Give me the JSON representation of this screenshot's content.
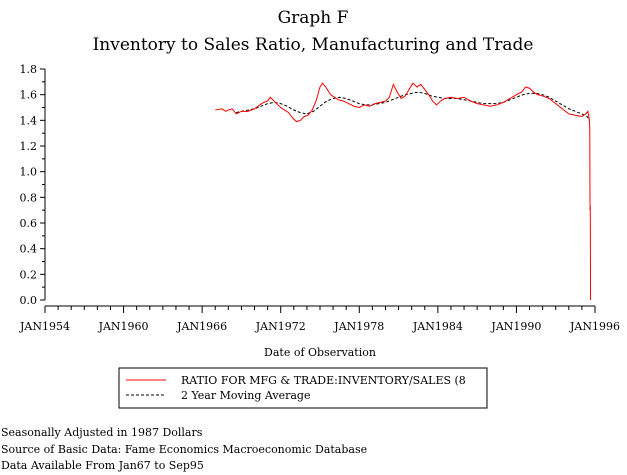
{
  "chart_data": {
    "type": "line",
    "title": "Graph F",
    "subtitle": "Inventory to Sales Ratio, Manufacturing and Trade",
    "xlabel": "Date of Observation",
    "ylabel": "",
    "x_range": [
      1954.0,
      1996.0
    ],
    "ylim": [
      0.0,
      1.8
    ],
    "x_ticks": [
      {
        "label": "JAN1954",
        "value": 1954
      },
      {
        "label": "JAN1960",
        "value": 1960
      },
      {
        "label": "JAN1966",
        "value": 1966
      },
      {
        "label": "JAN1972",
        "value": 1972
      },
      {
        "label": "JAN1978",
        "value": 1978
      },
      {
        "label": "JAN1984",
        "value": 1984
      },
      {
        "label": "JAN1990",
        "value": 1990
      },
      {
        "label": "JAN1996",
        "value": 1996
      }
    ],
    "y_ticks": [
      "0.0",
      "0.2",
      "0.4",
      "0.6",
      "0.8",
      "1.0",
      "1.2",
      "1.4",
      "1.6",
      "1.8"
    ],
    "legend_position": "bottom",
    "series": [
      {
        "name": "RATIO FOR MFG & TRADE:INVENTORY/SALES (8",
        "color": "#ff0000",
        "style": "solid",
        "points": [
          [
            1967.0,
            1.48
          ],
          [
            1967.5,
            1.49
          ],
          [
            1967.8,
            1.47
          ],
          [
            1968.0,
            1.48
          ],
          [
            1968.3,
            1.49
          ],
          [
            1968.6,
            1.45
          ],
          [
            1969.0,
            1.47
          ],
          [
            1969.5,
            1.47
          ],
          [
            1970.0,
            1.49
          ],
          [
            1970.4,
            1.52
          ],
          [
            1970.7,
            1.54
          ],
          [
            1971.0,
            1.55
          ],
          [
            1971.2,
            1.58
          ],
          [
            1971.5,
            1.55
          ],
          [
            1971.8,
            1.52
          ],
          [
            1972.0,
            1.5
          ],
          [
            1972.3,
            1.48
          ],
          [
            1972.6,
            1.46
          ],
          [
            1972.9,
            1.42
          ],
          [
            1973.2,
            1.39
          ],
          [
            1973.5,
            1.4
          ],
          [
            1973.8,
            1.43
          ],
          [
            1974.1,
            1.44
          ],
          [
            1974.4,
            1.48
          ],
          [
            1974.7,
            1.55
          ],
          [
            1975.0,
            1.66
          ],
          [
            1975.2,
            1.69
          ],
          [
            1975.5,
            1.65
          ],
          [
            1975.8,
            1.6
          ],
          [
            1976.1,
            1.58
          ],
          [
            1976.4,
            1.56
          ],
          [
            1976.8,
            1.55
          ],
          [
            1977.2,
            1.53
          ],
          [
            1977.6,
            1.51
          ],
          [
            1978.0,
            1.5
          ],
          [
            1978.4,
            1.52
          ],
          [
            1978.8,
            1.51
          ],
          [
            1979.2,
            1.53
          ],
          [
            1979.6,
            1.54
          ],
          [
            1980.0,
            1.55
          ],
          [
            1980.3,
            1.58
          ],
          [
            1980.6,
            1.68
          ],
          [
            1980.9,
            1.62
          ],
          [
            1981.2,
            1.57
          ],
          [
            1981.5,
            1.59
          ],
          [
            1981.8,
            1.64
          ],
          [
            1982.1,
            1.69
          ],
          [
            1982.4,
            1.66
          ],
          [
            1982.7,
            1.68
          ],
          [
            1983.0,
            1.64
          ],
          [
            1983.3,
            1.6
          ],
          [
            1983.6,
            1.55
          ],
          [
            1983.9,
            1.52
          ],
          [
            1984.2,
            1.55
          ],
          [
            1984.5,
            1.57
          ],
          [
            1985.0,
            1.58
          ],
          [
            1985.5,
            1.57
          ],
          [
            1986.0,
            1.58
          ],
          [
            1986.5,
            1.55
          ],
          [
            1987.0,
            1.53
          ],
          [
            1987.5,
            1.52
          ],
          [
            1988.0,
            1.51
          ],
          [
            1988.5,
            1.52
          ],
          [
            1989.0,
            1.54
          ],
          [
            1989.5,
            1.57
          ],
          [
            1990.0,
            1.6
          ],
          [
            1990.4,
            1.62
          ],
          [
            1990.7,
            1.66
          ],
          [
            1991.0,
            1.65
          ],
          [
            1991.3,
            1.62
          ],
          [
            1991.6,
            1.6
          ],
          [
            1992.0,
            1.59
          ],
          [
            1992.5,
            1.57
          ],
          [
            1993.0,
            1.53
          ],
          [
            1993.5,
            1.49
          ],
          [
            1994.0,
            1.45
          ],
          [
            1994.5,
            1.44
          ],
          [
            1995.0,
            1.43
          ],
          [
            1995.3,
            1.45
          ],
          [
            1995.45,
            1.47
          ],
          [
            1995.55,
            1.42
          ],
          [
            1995.6,
            1.35
          ],
          [
            1995.62,
            0.7
          ],
          [
            1995.64,
            0.73
          ],
          [
            1995.66,
            0.0
          ]
        ]
      },
      {
        "name": "2 Year Moving Average",
        "color": "#000000",
        "style": "dashed",
        "points": [
          [
            1968.6,
            1.46
          ],
          [
            1969.0,
            1.47
          ],
          [
            1969.5,
            1.48
          ],
          [
            1970.0,
            1.49
          ],
          [
            1970.5,
            1.51
          ],
          [
            1971.0,
            1.53
          ],
          [
            1971.5,
            1.54
          ],
          [
            1972.0,
            1.53
          ],
          [
            1972.5,
            1.51
          ],
          [
            1973.0,
            1.48
          ],
          [
            1973.5,
            1.46
          ],
          [
            1974.0,
            1.45
          ],
          [
            1974.5,
            1.47
          ],
          [
            1975.0,
            1.51
          ],
          [
            1975.5,
            1.55
          ],
          [
            1976.0,
            1.57
          ],
          [
            1976.5,
            1.58
          ],
          [
            1977.0,
            1.57
          ],
          [
            1977.5,
            1.55
          ],
          [
            1978.0,
            1.53
          ],
          [
            1978.5,
            1.52
          ],
          [
            1979.0,
            1.52
          ],
          [
            1979.5,
            1.53
          ],
          [
            1980.0,
            1.54
          ],
          [
            1980.5,
            1.56
          ],
          [
            1981.0,
            1.58
          ],
          [
            1981.5,
            1.6
          ],
          [
            1982.0,
            1.61
          ],
          [
            1982.5,
            1.62
          ],
          [
            1983.0,
            1.61
          ],
          [
            1983.5,
            1.59
          ],
          [
            1984.0,
            1.58
          ],
          [
            1984.5,
            1.57
          ],
          [
            1985.0,
            1.57
          ],
          [
            1985.5,
            1.57
          ],
          [
            1986.0,
            1.56
          ],
          [
            1986.5,
            1.55
          ],
          [
            1987.0,
            1.54
          ],
          [
            1987.5,
            1.53
          ],
          [
            1988.0,
            1.53
          ],
          [
            1988.5,
            1.53
          ],
          [
            1989.0,
            1.54
          ],
          [
            1989.5,
            1.56
          ],
          [
            1990.0,
            1.58
          ],
          [
            1990.5,
            1.6
          ],
          [
            1991.0,
            1.61
          ],
          [
            1991.5,
            1.61
          ],
          [
            1992.0,
            1.6
          ],
          [
            1992.5,
            1.58
          ],
          [
            1993.0,
            1.55
          ],
          [
            1993.5,
            1.52
          ],
          [
            1994.0,
            1.49
          ],
          [
            1994.5,
            1.47
          ],
          [
            1995.0,
            1.45
          ],
          [
            1995.4,
            1.43
          ],
          [
            1995.6,
            1.4
          ]
        ]
      }
    ]
  },
  "notes": [
    "Seasonally Adjusted in 1987 Dollars",
    "Source of Basic Data: Fame Economics Macroeconomic Database",
    "Data Available From Jan67 to Sep95"
  ]
}
